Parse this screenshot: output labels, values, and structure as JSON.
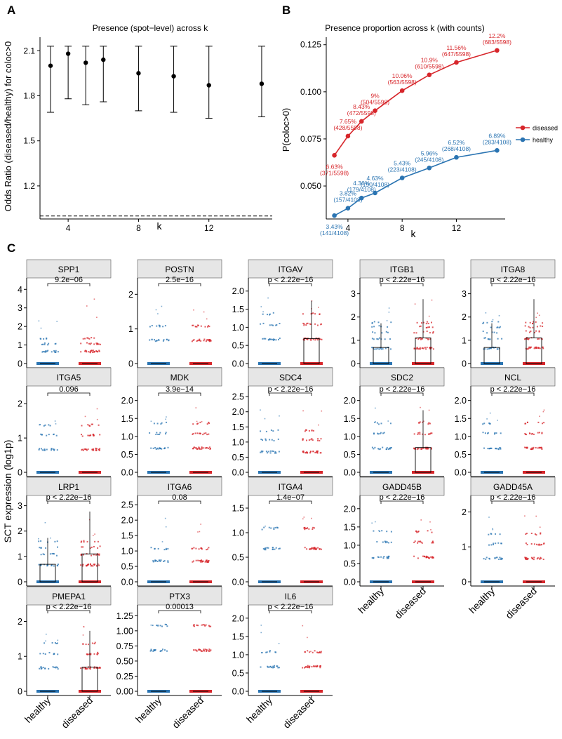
{
  "colors": {
    "diseased": "#D7262B",
    "healthy": "#2A74B2",
    "strip": "#E6E6E6",
    "ink": "#000000"
  },
  "panel_labels": {
    "a": "A",
    "b": "B",
    "c": "C"
  },
  "chart_data": [
    {
      "id": "A",
      "type": "scatter",
      "title": "Presence (spot−level) across k",
      "xlabel": "k",
      "ylabel": "Odds Ratio (diseased/healthy) for coloc>0",
      "xlim": [
        2.4,
        15.6
      ],
      "ylim": [
        0.98,
        2.19
      ],
      "xticks": [
        4,
        8,
        12
      ],
      "yticks": [
        1.2,
        1.5,
        1.8,
        2.1
      ],
      "ytick_labels": [
        "1.2",
        "1.5",
        "1.8",
        "2.1"
      ],
      "reference_line": 1.0,
      "points": [
        {
          "k": 3,
          "or": 2.0,
          "lo": 1.69,
          "hi": 2.13
        },
        {
          "k": 4,
          "or": 2.08,
          "lo": 1.78,
          "hi": 2.13
        },
        {
          "k": 5,
          "or": 2.02,
          "lo": 1.74,
          "hi": 2.13
        },
        {
          "k": 6,
          "or": 2.04,
          "lo": 1.76,
          "hi": 2.13
        },
        {
          "k": 8,
          "or": 1.95,
          "lo": 1.7,
          "hi": 2.13
        },
        {
          "k": 10,
          "or": 1.93,
          "lo": 1.69,
          "hi": 2.13
        },
        {
          "k": 12,
          "or": 1.87,
          "lo": 1.65,
          "hi": 2.13
        },
        {
          "k": 15,
          "or": 1.88,
          "lo": 1.66,
          "hi": 2.13
        }
      ]
    },
    {
      "id": "B",
      "type": "line",
      "title": "Presence proportion across k (with counts)",
      "xlabel": "k",
      "ylabel": "P(coloc>0)",
      "xlim": [
        2.4,
        15.6
      ],
      "ylim": [
        0.0325,
        0.129
      ],
      "xticks": [
        4,
        8,
        12
      ],
      "yticks": [
        0.05,
        0.075,
        0.1,
        0.125
      ],
      "ytick_labels": [
        "0.050",
        "0.075",
        "0.100",
        "0.125"
      ],
      "legend": [
        "diseased",
        "healthy"
      ],
      "series": [
        {
          "name": "diseased",
          "x": [
            3,
            4,
            5,
            6,
            8,
            10,
            12,
            15
          ],
          "values": [
            0.0663,
            0.0765,
            0.0843,
            0.09,
            0.1006,
            0.109,
            0.1156,
            0.122
          ],
          "labels": [
            "6.63%",
            "7.65%",
            "8.43%",
            "9%",
            "10.06%",
            "10.9%",
            "11.56%",
            "12.2%"
          ],
          "counts": [
            "(371/5598)",
            "(428/5598)",
            "(472/5598)",
            "(504/5598)",
            "(563/5598)",
            "(610/5598)",
            "(647/5598)",
            "(683/5598)"
          ]
        },
        {
          "name": "healthy",
          "x": [
            3,
            4,
            5,
            6,
            8,
            10,
            12,
            15
          ],
          "values": [
            0.0343,
            0.0382,
            0.0436,
            0.0463,
            0.0543,
            0.0596,
            0.0652,
            0.0689
          ],
          "labels": [
            "3.43%",
            "3.82%",
            "4.36%",
            "4.63%",
            "5.43%",
            "5.96%",
            "6.52%",
            "6.89%"
          ],
          "counts": [
            "(141/4108)",
            "(157/4108)",
            "(179/4108)",
            "(190/4108)",
            "(223/4108)",
            "(245/4108)",
            "(268/4108)",
            "(283/4108)"
          ]
        }
      ]
    },
    {
      "id": "C",
      "type": "scatter",
      "ylabel": "SCT expression (log1p)",
      "categories": [
        "healthy",
        "diseased"
      ],
      "genes": [
        {
          "name": "SPP1",
          "p": "9.2e−06",
          "yticks": [
            0,
            1,
            2,
            3,
            4
          ],
          "ymax": 4.2,
          "levels": [
            0.69,
            1.1,
            1.39
          ],
          "box_h": 0,
          "box_d": 0,
          "wh": 0,
          "wd": 0
        },
        {
          "name": "POSTN",
          "p": "2.5e−16",
          "yticks": [
            0,
            1,
            2
          ],
          "ymax": 2.25,
          "levels": [
            0.69,
            1.1
          ],
          "box_h": 0,
          "box_d": 0,
          "wh": 0,
          "wd": 0
        },
        {
          "name": "ITGAV",
          "p": "p < 2.22e−16",
          "yticks": [
            0,
            0.5,
            1,
            1.5,
            2
          ],
          "ytick_labels": [
            "0.0",
            "0.5",
            "1.0",
            "1.5",
            "2.0"
          ],
          "ymax": 2.15,
          "levels": [
            0.69,
            1.1,
            1.39
          ],
          "box_h": 0,
          "box_d": 0.69,
          "wh": 0,
          "wd": 1.73
        },
        {
          "name": "ITGB1",
          "p": "p < 2.22e−16",
          "yticks": [
            0,
            1,
            2,
            3
          ],
          "ymax": 3.35,
          "levels": [
            0.69,
            1.1,
            1.39,
            1.61,
            1.79
          ],
          "box_h": 0.69,
          "box_d": 1.1,
          "wh": 1.73,
          "wd": 2.77
        },
        {
          "name": "ITGA8",
          "p": "p < 2.22e−16",
          "yticks": [
            0,
            1,
            2,
            3
          ],
          "ymax": 3.35,
          "levels": [
            0.69,
            1.1,
            1.39,
            1.61,
            1.79
          ],
          "box_h": 0.69,
          "box_d": 1.1,
          "wh": 1.73,
          "wd": 2.77
        },
        {
          "name": "ITGA5",
          "p": "0.096",
          "yticks": [
            0,
            1,
            2
          ],
          "ymax": 2.25,
          "levels": [
            0.69,
            1.1,
            1.39
          ],
          "box_h": 0,
          "box_d": 0,
          "wh": 0,
          "wd": 0
        },
        {
          "name": "MDK",
          "p": "3.9e−14",
          "yticks": [
            0,
            0.5,
            1,
            1.5,
            2
          ],
          "ytick_labels": [
            "0.0",
            "0.5",
            "1.0",
            "1.5",
            "2.0"
          ],
          "ymax": 2.15,
          "levels": [
            0.69,
            1.1,
            1.39
          ],
          "box_h": 0,
          "box_d": 0,
          "wh": 0,
          "wd": 0
        },
        {
          "name": "SDC4",
          "p": "p < 2.22e−16",
          "yticks": [
            0,
            0.5,
            1,
            1.5,
            2,
            2.5
          ],
          "ytick_labels": [
            "0.0",
            "0.5",
            "1.0",
            "1.5",
            "2.0",
            "2.5"
          ],
          "ymax": 2.55,
          "levels": [
            0.69,
            1.1,
            1.39
          ],
          "box_h": 0,
          "box_d": 0,
          "wh": 0,
          "wd": 0
        },
        {
          "name": "SDC2",
          "p": "p < 2.22e−16",
          "yticks": [
            0,
            0.5,
            1,
            1.5,
            2
          ],
          "ytick_labels": [
            "0.0",
            "0.5",
            "1.0",
            "1.5",
            "2.0"
          ],
          "ymax": 2.15,
          "levels": [
            0.69,
            1.1,
            1.39
          ],
          "box_h": 0,
          "box_d": 0.69,
          "wh": 0,
          "wd": 1.73
        },
        {
          "name": "NCL",
          "p": "p < 2.22e−16",
          "yticks": [
            0,
            0.5,
            1,
            1.5,
            2
          ],
          "ytick_labels": [
            "0.0",
            "0.5",
            "1.0",
            "1.5",
            "2.0"
          ],
          "ymax": 2.15,
          "levels": [
            0.69,
            1.1,
            1.39
          ],
          "box_h": 0,
          "box_d": 0,
          "wh": 0,
          "wd": 0
        },
        {
          "name": "LRP1",
          "p": "p < 2.22e−16",
          "yticks": [
            0,
            1,
            2,
            3
          ],
          "ymax": 3.1,
          "levels": [
            0.69,
            1.1,
            1.39,
            1.61
          ],
          "box_h": 0.69,
          "box_d": 1.1,
          "wh": 1.73,
          "wd": 2.77
        },
        {
          "name": "ITGA6",
          "p": "0.08",
          "yticks": [
            0,
            0.5,
            1,
            1.5,
            2,
            2.5
          ],
          "ytick_labels": [
            "0.0",
            "0.5",
            "1.0",
            "1.5",
            "2.0",
            "2.5"
          ],
          "ymax": 2.55,
          "levels": [
            0.69,
            1.1
          ],
          "box_h": 0,
          "box_d": 0,
          "wh": 0,
          "wd": 0
        },
        {
          "name": "ITGA4",
          "p": "1.4e−07",
          "yticks": [
            0,
            0.5,
            1,
            1.5
          ],
          "ytick_labels": [
            "0.0",
            "0.5",
            "1.0",
            "1.5"
          ],
          "ymax": 1.6,
          "levels": [
            0.69,
            1.1
          ],
          "box_h": 0,
          "box_d": 0,
          "wh": 0,
          "wd": 0
        },
        {
          "name": "GADD45B",
          "p": "p < 2.22e−16",
          "yticks": [
            0,
            0.5,
            1,
            1.5,
            2
          ],
          "ytick_labels": [
            "0.0",
            "0.5",
            "1.0",
            "1.5",
            "2.0"
          ],
          "ymax": 2.15,
          "levels": [
            0.69,
            1.1,
            1.39
          ],
          "box_h": 0,
          "box_d": 0,
          "wh": 0,
          "wd": 0
        },
        {
          "name": "GADD45A",
          "p": "p < 2.22e−16",
          "yticks": [
            0,
            1,
            2
          ],
          "ymax": 2.25,
          "levels": [
            0.69,
            1.1,
            1.39
          ],
          "box_h": 0,
          "box_d": 0,
          "wh": 0,
          "wd": 0
        },
        {
          "name": "PMEPA1",
          "p": "p < 2.22e−16",
          "yticks": [
            0,
            1,
            2
          ],
          "ymax": 2.25,
          "levels": [
            0.69,
            1.1,
            1.39
          ],
          "box_h": 0,
          "box_d": 0.69,
          "wh": 0,
          "wd": 1.73
        },
        {
          "name": "PTX3",
          "p": "0.00013",
          "yticks": [
            0,
            0.25,
            0.5,
            0.75,
            1,
            1.25
          ],
          "ytick_labels": [
            "0.00",
            "0.25",
            "0.50",
            "0.75",
            "1.00",
            "1.25"
          ],
          "ymax": 1.3,
          "levels": [
            0.69,
            1.1
          ],
          "box_h": 0,
          "box_d": 0,
          "wh": 0,
          "wd": 0
        },
        {
          "name": "IL6",
          "p": "p < 2.22e−16",
          "yticks": [
            0,
            0.5,
            1,
            1.5,
            2
          ],
          "ytick_labels": [
            "0.0",
            "0.5",
            "1.0",
            "1.5",
            "2.0"
          ],
          "ymax": 2.15,
          "levels": [
            0.69,
            1.1
          ],
          "box_h": 0,
          "box_d": 0,
          "wh": 0,
          "wd": 0
        }
      ]
    }
  ]
}
